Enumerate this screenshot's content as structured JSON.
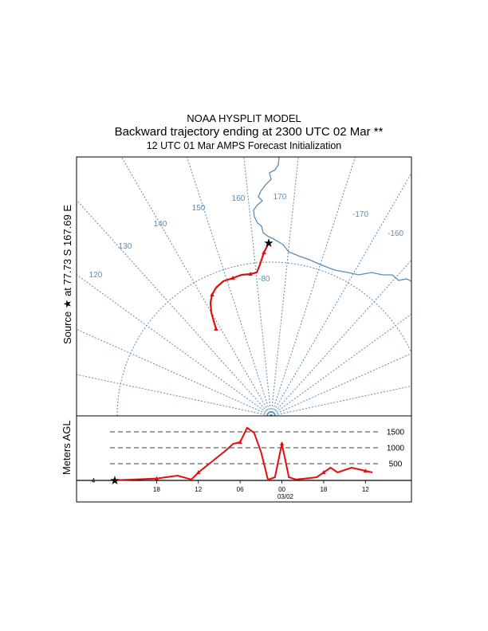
{
  "header": {
    "title": "NOAA HYSPLIT MODEL",
    "subtitle": "Backward trajectory ending at 2300 UTC 02 Mar **",
    "subtitle2": "12 UTC 01 Mar    AMPS  Forecast Initialization"
  },
  "source_label": "Source ★ at  77.73 S  167.69 E",
  "colors": {
    "trajectory": "#e01010",
    "map": "#5b8db5",
    "frame": "#000000"
  },
  "chart_data": [
    {
      "type": "line",
      "name": "map-panel",
      "meridian_labels": [
        "120",
        "130",
        "140",
        "150",
        "160",
        "170",
        "-170",
        "-160"
      ],
      "latitude_label": "-80",
      "source": {
        "lat": -77.73,
        "lon": 167.69
      },
      "trajectory_marks_hours": [
        6,
        12,
        18,
        24
      ]
    },
    {
      "type": "line",
      "name": "height-panel",
      "ylabel": "Meters AGL",
      "y_ref_lines": [
        500,
        1000,
        1500
      ],
      "y_ref_labels": [
        "500",
        "1000",
        "1500"
      ],
      "start_height_label": "4",
      "x_tick_labels": [
        "18",
        "12",
        "06",
        "00",
        "18",
        "12"
      ],
      "date_label": "03/02",
      "hours_back": [
        0,
        3,
        6,
        9,
        11,
        12,
        14,
        16,
        17,
        18,
        19,
        20,
        21,
        22,
        23,
        24,
        25,
        26,
        27,
        29,
        31,
        32,
        34,
        35,
        36,
        37
      ],
      "heights_m": [
        4,
        30,
        60,
        150,
        30,
        250,
        600,
        950,
        1150,
        1200,
        1650,
        1500,
        900,
        20,
        100,
        1150,
        100,
        30,
        50,
        100,
        400,
        250,
        400,
        350,
        300,
        250
      ]
    }
  ]
}
